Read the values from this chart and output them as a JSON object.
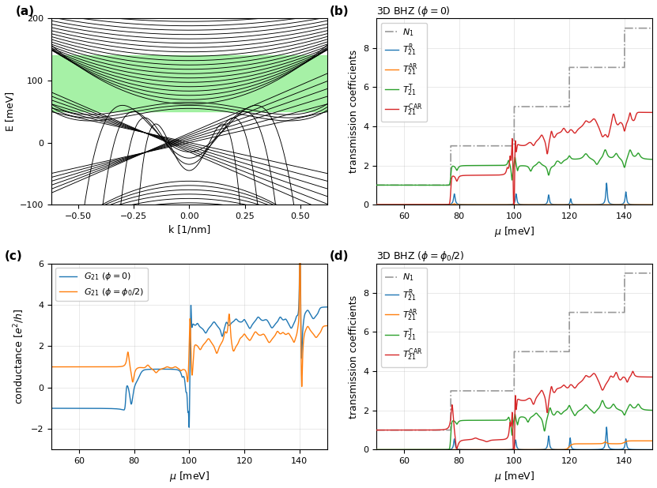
{
  "fig_width": 8.31,
  "fig_height": 6.18,
  "panel_a": {
    "xlabel": "k [1/nm]",
    "ylabel": "E [meV]",
    "xlim": [
      -0.62,
      0.62
    ],
    "ylim": [
      -100,
      200
    ],
    "yticks": [
      -100,
      0,
      100,
      200
    ],
    "xticks": [
      -0.5,
      -0.25,
      0.0,
      0.25,
      0.5
    ],
    "green_band_ymin": 50,
    "green_band_ymax": 140,
    "green_color": "#90EE90",
    "label": "(a)"
  },
  "panel_b": {
    "title": "3D BHZ ($\\phi = 0$)",
    "xlabel": "$\\mu$ [meV]",
    "ylabel": "transmission coefficients",
    "xlim": [
      50,
      150
    ],
    "ylim": [
      0,
      9.5
    ],
    "yticks": [
      0,
      2,
      4,
      6,
      8
    ],
    "label": "(b)",
    "legend": [
      "$N_1$",
      "$T_{21}^{\\mathrm{R}}$",
      "$T_{21}^{\\mathrm{AR}}$",
      "$T_{21}^{\\mathrm{T}}$",
      "$T_{21}^{\\mathrm{CAR}}$"
    ],
    "colors": [
      "#999999",
      "#1f77b4",
      "#ff7f0e",
      "#2ca02c",
      "#d62728"
    ]
  },
  "panel_c": {
    "xlabel": "$\\mu$ [meV]",
    "ylabel": "conductance [$e^2/h$]",
    "xlim": [
      50,
      150
    ],
    "ylim": [
      -3,
      6
    ],
    "yticks": [
      -2,
      0,
      2,
      4,
      6
    ],
    "label": "(c)",
    "legend": [
      "$G_{21}$ ($\\phi = 0$)",
      "$G_{21}$ ($\\phi = \\phi_0/2$)"
    ],
    "colors": [
      "#1f77b4",
      "#ff7f0e"
    ]
  },
  "panel_d": {
    "title": "3D BHZ ($\\phi = \\phi_0/2$)",
    "xlabel": "$\\mu$ [meV]",
    "ylabel": "transmission coefficients",
    "xlim": [
      50,
      150
    ],
    "ylim": [
      0,
      9.5
    ],
    "yticks": [
      0,
      2,
      4,
      6,
      8
    ],
    "label": "(d)",
    "legend": [
      "$N_1$",
      "$T_{21}^{\\mathrm{R}}$",
      "$T_{21}^{\\mathrm{AR}}$",
      "$T_{21}^{\\mathrm{T}}$",
      "$T_{21}^{\\mathrm{CAR}}$"
    ],
    "colors": [
      "#999999",
      "#1f77b4",
      "#ff7f0e",
      "#2ca02c",
      "#d62728"
    ]
  }
}
